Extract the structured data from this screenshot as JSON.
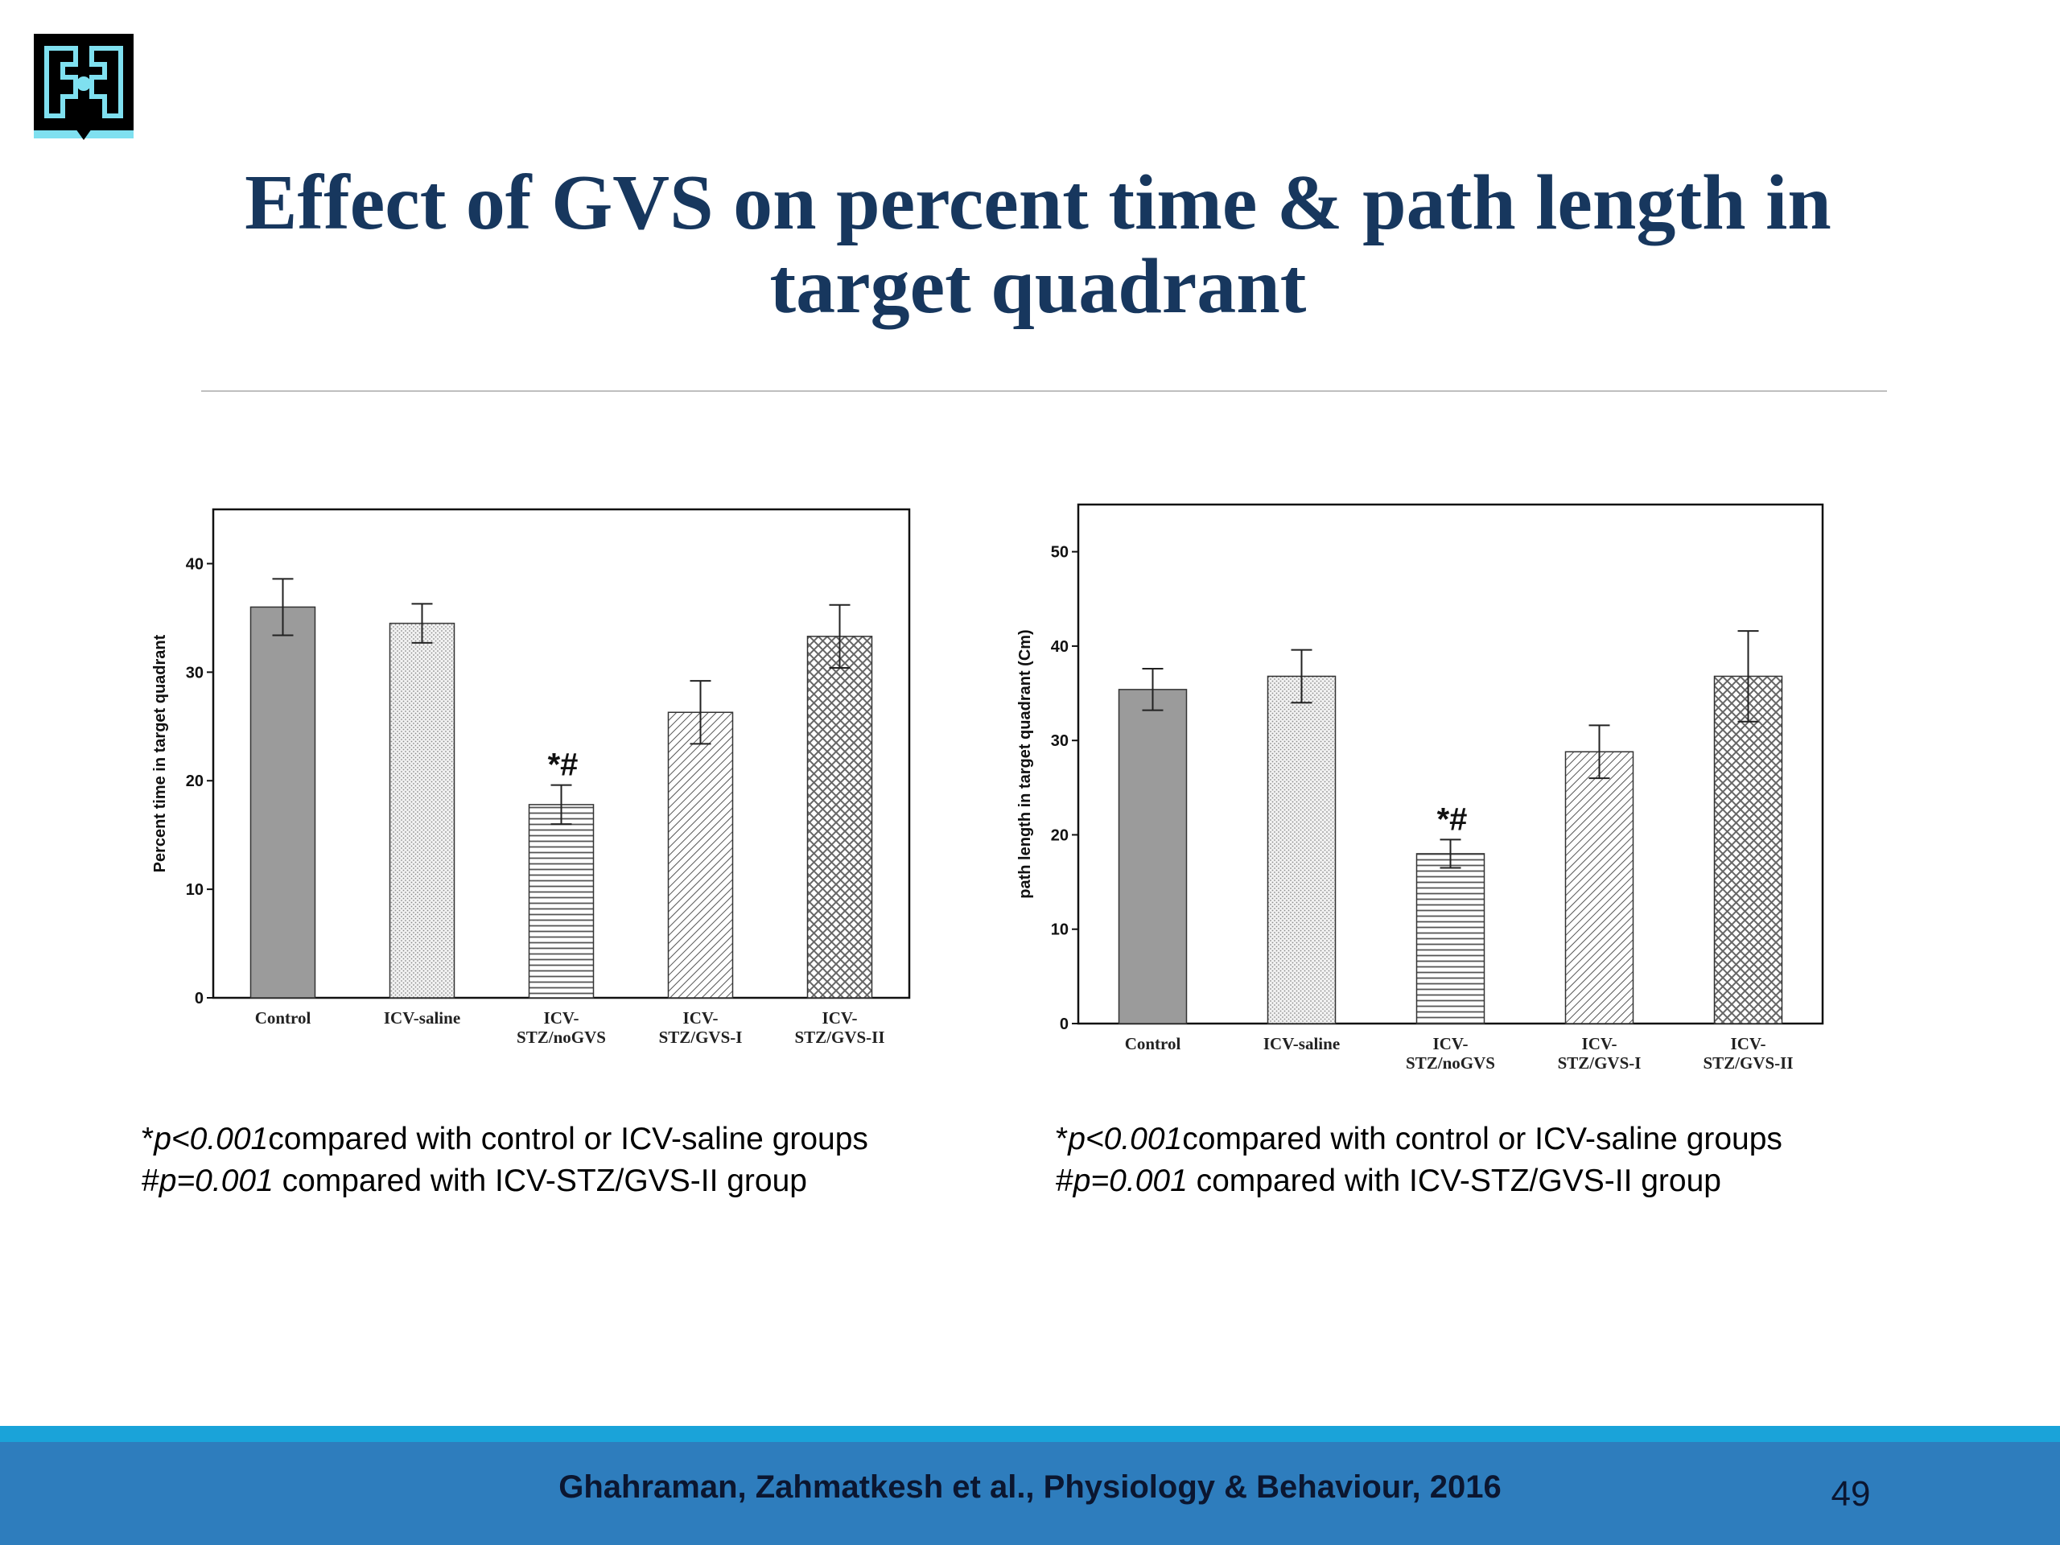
{
  "slide": {
    "title": "Effect of GVS on percent time & path length in target quadrant",
    "citation": "Ghahraman, Zahmatkesh et al., Physiology & Behaviour, 2016",
    "page_number": "49",
    "logo_icon": "institution-logo-icon",
    "colors": {
      "title": "#17375e",
      "footer_bar": "#2e7dbd",
      "footer_stripe": "#1aa3d9"
    }
  },
  "footnotes": [
    {
      "star_symbol": "*",
      "star_p": "p<0.001",
      "star_text": "compared with control or ICV-saline groups",
      "hash_symbol": "#",
      "hash_p": "p=0.001",
      "hash_text": " compared with ICV-STZ/GVS-II group"
    },
    {
      "star_symbol": "*",
      "star_p": "p<0.001",
      "star_text": "compared with control or ICV-saline groups",
      "hash_symbol": "#",
      "hash_p": "p=0.001",
      "hash_text": " compared with ICV-STZ/GVS-II group"
    }
  ],
  "chart_data": [
    {
      "type": "bar",
      "ylabel": "Percent time in target quadrant",
      "xlabel": "",
      "ylim": [
        0,
        45
      ],
      "yticks": [
        0,
        10,
        20,
        30,
        40
      ],
      "grid": false,
      "categories": [
        [
          "Control"
        ],
        [
          "ICV-saline"
        ],
        [
          "ICV-",
          "STZ/noGVS"
        ],
        [
          "ICV-",
          "STZ/GVS-I"
        ],
        [
          "ICV-",
          "STZ/GVS-II"
        ]
      ],
      "values": [
        36,
        34.5,
        17.8,
        26.3,
        33.3
      ],
      "errors": [
        2.6,
        1.8,
        1.8,
        2.9,
        2.9
      ],
      "patterns": [
        "solid-gray",
        "fine-dots",
        "horizontal-lines",
        "diagonal-lines",
        "crosshatch"
      ],
      "annotations": [
        {
          "category_index": 2,
          "text": "*#"
        }
      ]
    },
    {
      "type": "bar",
      "ylabel": "path length in target quadrant (Cm)",
      "xlabel": "",
      "ylim": [
        0,
        55
      ],
      "yticks": [
        0,
        10,
        20,
        30,
        40,
        50
      ],
      "grid": false,
      "categories": [
        [
          "Control"
        ],
        [
          "ICV-saline"
        ],
        [
          "ICV-",
          "STZ/noGVS"
        ],
        [
          "ICV-",
          "STZ/GVS-I"
        ],
        [
          "ICV-",
          "STZ/GVS-II"
        ]
      ],
      "values": [
        35.4,
        36.8,
        18,
        28.8,
        36.8
      ],
      "errors": [
        2.2,
        2.8,
        1.5,
        2.8,
        4.8
      ],
      "patterns": [
        "solid-gray",
        "fine-dots",
        "horizontal-lines",
        "diagonal-lines",
        "crosshatch"
      ],
      "annotations": [
        {
          "category_index": 2,
          "text": "*#"
        }
      ]
    }
  ]
}
